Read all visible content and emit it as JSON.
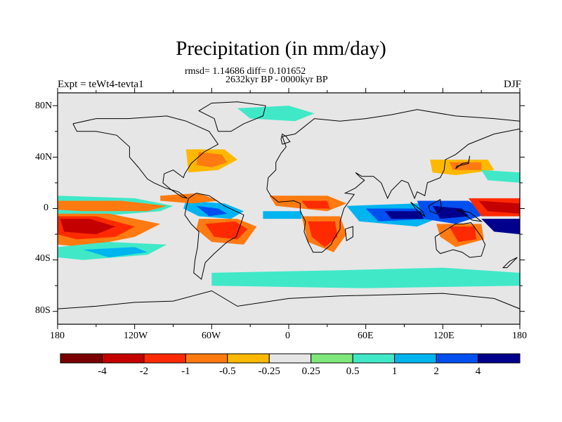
{
  "title": "Precipitation (in mm/day)",
  "subtitle_rmsd": "rmsd= 1.14686 diff= 0.101652",
  "subtitle_period": "2632kyr BP - 0000kyr BP",
  "experiment_label": "Expt = teWt4-tevta1",
  "season_label": "DJF",
  "lat_labels": [
    "80N",
    "40N",
    "0",
    "40S",
    "80S"
  ],
  "lon_labels": [
    "180",
    "120W",
    "60W",
    "0",
    "60E",
    "120E",
    "180"
  ],
  "colorbar": {
    "labels": [
      "-4",
      "-2",
      "-1",
      "-0.5",
      "-0.25",
      "0.25",
      "0.5",
      "1",
      "2",
      "4"
    ],
    "colors": [
      "#7a0000",
      "#c40000",
      "#ff2a00",
      "#ff7a10",
      "#ffb800",
      "#e6e6e6",
      "#7fe87a",
      "#40e8c8",
      "#00b4f0",
      "#0050f0",
      "#00008c"
    ]
  },
  "chart_data": {
    "type": "map",
    "variable": "Precipitation difference (mm/day)",
    "projection": "cylindrical equidistant",
    "lon_range": [
      -180,
      180
    ],
    "lat_range": [
      -90,
      90
    ],
    "anomaly_regions": [
      {
        "region": "Central/east Pacific south of equator",
        "lon_center": -150,
        "lat_center": -12,
        "value": -4
      },
      {
        "region": "Equatorial east Pacific",
        "lon_center": -140,
        "lat_center": 2,
        "value": -1
      },
      {
        "region": "South Pacific band",
        "lon_center": -135,
        "lat_center": -25,
        "value": 0.5
      },
      {
        "region": "Southern Brazil",
        "lon_center": -45,
        "lat_center": -15,
        "value": -2
      },
      {
        "region": "Northern South America",
        "lon_center": -58,
        "lat_center": -3,
        "value": 1
      },
      {
        "region": "Western North Atlantic",
        "lon_center": -55,
        "lat_center": 38,
        "value": -1
      },
      {
        "region": "Southern Africa",
        "lon_center": 27,
        "lat_center": -15,
        "value": -2
      },
      {
        "region": "Tropical North Africa / Gulf of Guinea",
        "lon_center": 15,
        "lat_center": 4,
        "value": -1
      },
      {
        "region": "Tropical Indian Ocean",
        "lon_center": 80,
        "lat_center": -5,
        "value": 2
      },
      {
        "region": "Maritime continent / Indonesia",
        "lon_center": 120,
        "lat_center": -5,
        "value": 4
      },
      {
        "region": "Western equatorial Pacific",
        "lon_center": 160,
        "lat_center": 2,
        "value": -4
      },
      {
        "region": "Northern Australia",
        "lon_center": 135,
        "lat_center": -20,
        "value": -2
      },
      {
        "region": "East Asia / Japan",
        "lon_center": 135,
        "lat_center": 32,
        "value": -1
      },
      {
        "region": "Southern Ocean",
        "lon_center": 60,
        "lat_center": -55,
        "value": 0.5
      }
    ]
  }
}
